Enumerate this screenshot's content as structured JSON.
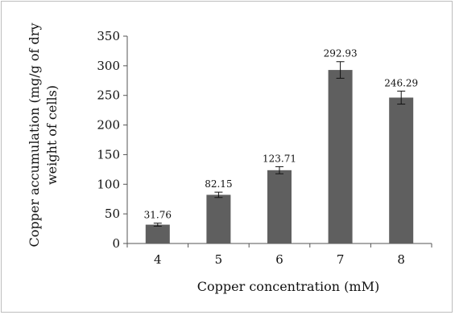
{
  "chart_data": {
    "type": "bar",
    "title": "",
    "xlabel": "Copper concentration (mM)",
    "ylabel_lines": [
      "Copper accumulation (mg/g of dry",
      "weight of cells)"
    ],
    "categories": [
      "4",
      "5",
      "6",
      "7",
      "8"
    ],
    "values": [
      31.76,
      82.15,
      123.71,
      292.93,
      246.29
    ],
    "data_labels": [
      "31.76",
      "82.15",
      "123.71",
      "292.93",
      "246.29"
    ],
    "error": [
      2.5,
      4.5,
      6.0,
      14.0,
      11.0
    ],
    "ylim": [
      0,
      350
    ],
    "yticks": [
      "0",
      "50",
      "100",
      "150",
      "200",
      "250",
      "300",
      "350"
    ],
    "ytick_values": [
      0,
      50,
      100,
      150,
      200,
      250,
      300,
      350
    ],
    "grid": false,
    "bar_color": "#5f5f5f"
  }
}
